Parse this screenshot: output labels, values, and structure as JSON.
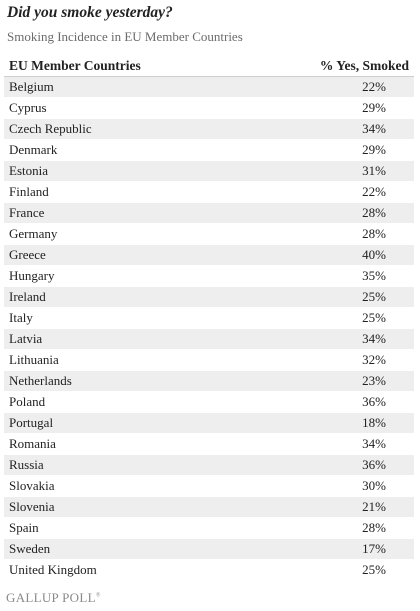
{
  "title": "Did you smoke yesterday?",
  "subtitle": "Smoking Incidence in EU Member Countries",
  "footer_logo": "GALLUP POLL",
  "footer_logo_mark": "®",
  "chart_data": {
    "type": "table",
    "title": "Did you smoke yesterday?",
    "subtitle": "Smoking Incidence in EU Member Countries",
    "columns": [
      "EU Member Countries",
      "% Yes, Smoked"
    ],
    "rows": [
      {
        "country": "Belgium",
        "value": "22%"
      },
      {
        "country": "Cyprus",
        "value": "29%"
      },
      {
        "country": "Czech Republic",
        "value": "34%"
      },
      {
        "country": "Denmark",
        "value": "29%"
      },
      {
        "country": "Estonia",
        "value": "31%"
      },
      {
        "country": "Finland",
        "value": "22%"
      },
      {
        "country": "France",
        "value": "28%"
      },
      {
        "country": "Germany",
        "value": "28%"
      },
      {
        "country": "Greece",
        "value": "40%"
      },
      {
        "country": "Hungary",
        "value": "35%"
      },
      {
        "country": "Ireland",
        "value": "25%"
      },
      {
        "country": "Italy",
        "value": "25%"
      },
      {
        "country": "Latvia",
        "value": "34%"
      },
      {
        "country": "Lithuania",
        "value": "32%"
      },
      {
        "country": "Netherlands",
        "value": "23%"
      },
      {
        "country": "Poland",
        "value": "36%"
      },
      {
        "country": "Portugal",
        "value": "18%"
      },
      {
        "country": "Romania",
        "value": "34%"
      },
      {
        "country": "Russia",
        "value": "36%"
      },
      {
        "country": "Slovakia",
        "value": "30%"
      },
      {
        "country": "Slovenia",
        "value": "21%"
      },
      {
        "country": "Spain",
        "value": "28%"
      },
      {
        "country": "Sweden",
        "value": "17%"
      },
      {
        "country": "United Kingdom",
        "value": "25%"
      }
    ]
  }
}
